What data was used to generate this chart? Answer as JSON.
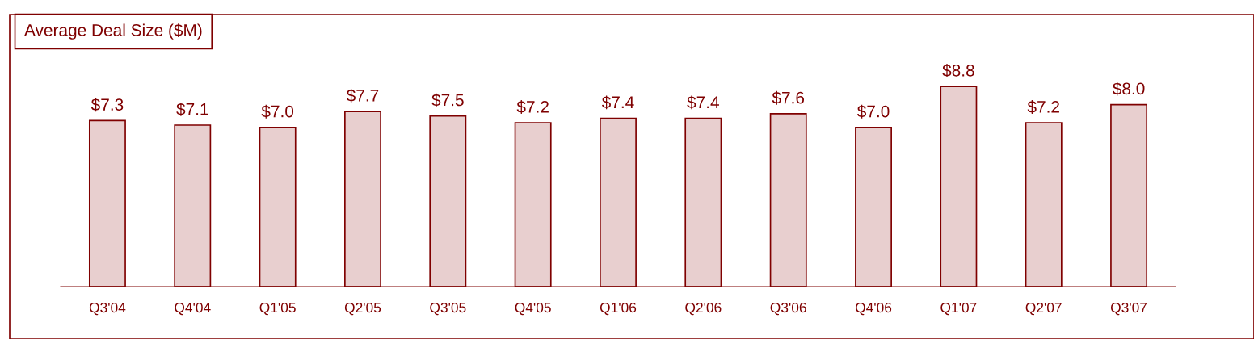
{
  "chart_data": {
    "type": "bar",
    "title": "Average Deal Size ($M)",
    "categories": [
      "Q3'04",
      "Q4'04",
      "Q1'05",
      "Q2'05",
      "Q3'05",
      "Q4'05",
      "Q1'06",
      "Q2'06",
      "Q3'06",
      "Q4'06",
      "Q1'07",
      "Q2'07",
      "Q3'07"
    ],
    "values": [
      7.3,
      7.1,
      7.0,
      7.7,
      7.5,
      7.2,
      7.4,
      7.4,
      7.6,
      7.0,
      8.8,
      7.2,
      8.0
    ],
    "value_labels": [
      "$7.3",
      "$7.1",
      "$7.0",
      "$7.7",
      "$7.5",
      "$7.2",
      "$7.4",
      "$7.4",
      "$7.6",
      "$7.0",
      "$8.8",
      "$7.2",
      "$8.0"
    ],
    "color": "#7f0000",
    "grid": false,
    "legend": false
  }
}
